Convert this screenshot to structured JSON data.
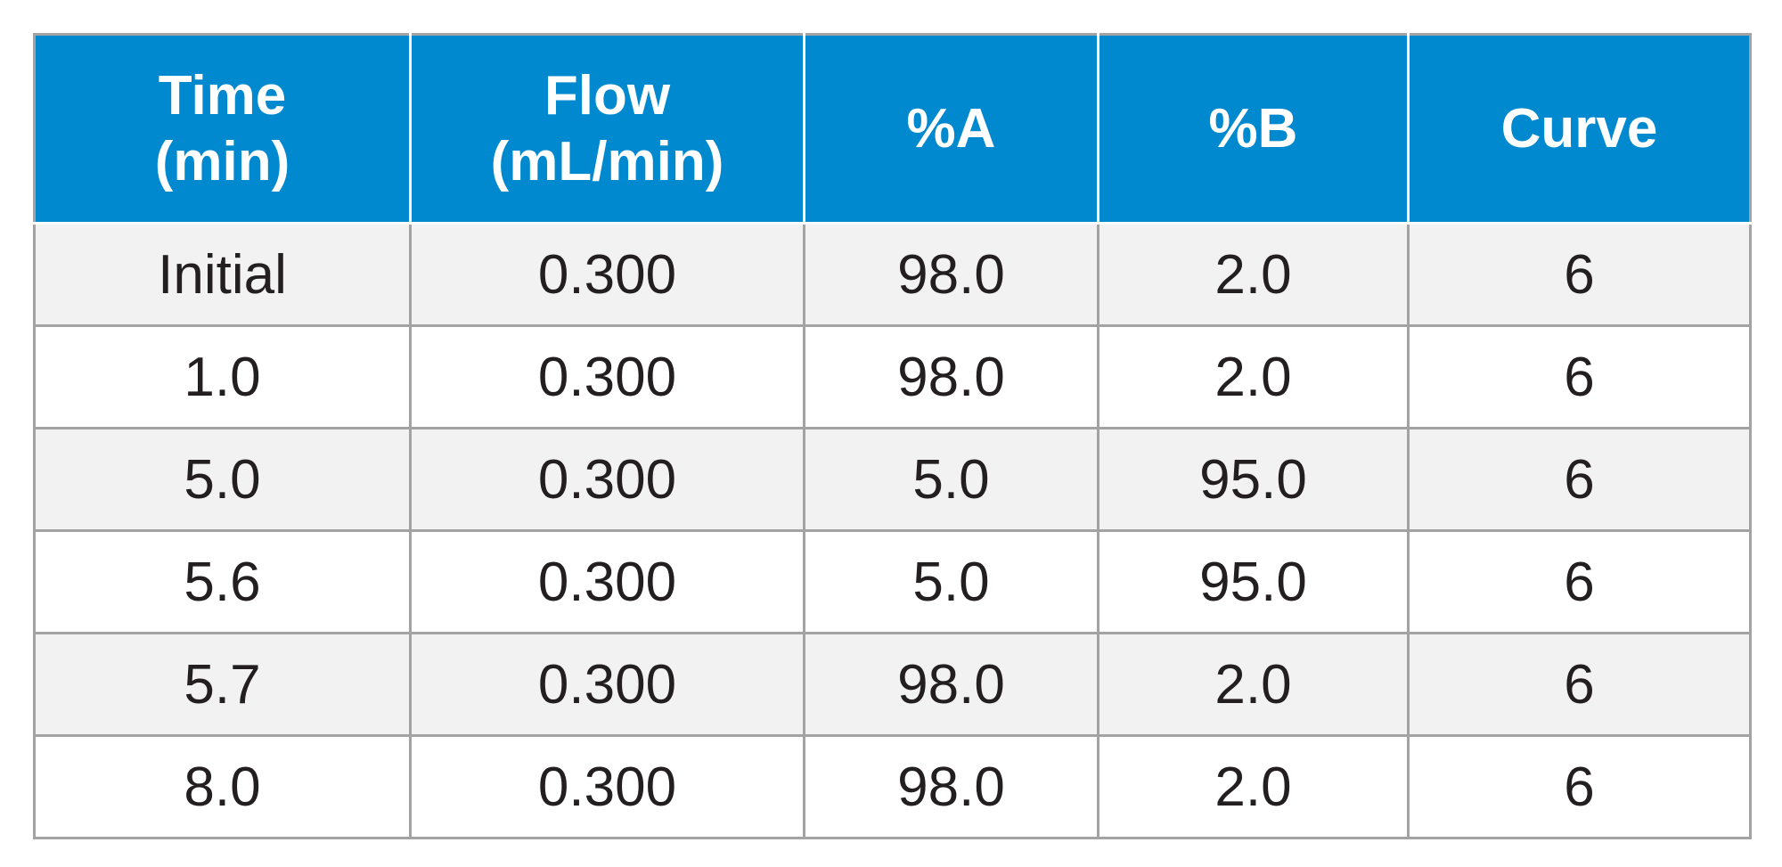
{
  "table": {
    "header": {
      "time": [
        "Time",
        "(min)"
      ],
      "flow": [
        "Flow",
        "(mL/min)"
      ],
      "pct_a": "%A",
      "pct_b": "%B",
      "curve": "Curve"
    },
    "rows": [
      {
        "time": "Initial",
        "flow": "0.300",
        "pct_a": "98.0",
        "pct_b": "2.0",
        "curve": "6"
      },
      {
        "time": "1.0",
        "flow": "0.300",
        "pct_a": "98.0",
        "pct_b": "2.0",
        "curve": "6"
      },
      {
        "time": "5.0",
        "flow": "0.300",
        "pct_a": "5.0",
        "pct_b": "95.0",
        "curve": "6"
      },
      {
        "time": "5.6",
        "flow": "0.300",
        "pct_a": "5.0",
        "pct_b": "95.0",
        "curve": "6"
      },
      {
        "time": "5.7",
        "flow": "0.300",
        "pct_a": "98.0",
        "pct_b": "2.0",
        "curve": "6"
      },
      {
        "time": "8.0",
        "flow": "0.300",
        "pct_a": "98.0",
        "pct_b": "2.0",
        "curve": "6"
      }
    ],
    "colors": {
      "header_bg": "#0089cf",
      "header_text": "#ffffff",
      "row_alt_bg": "#f2f2f3",
      "row_bg": "#ffffff",
      "grid": "#a3a3a3",
      "text": "#231f20"
    }
  }
}
